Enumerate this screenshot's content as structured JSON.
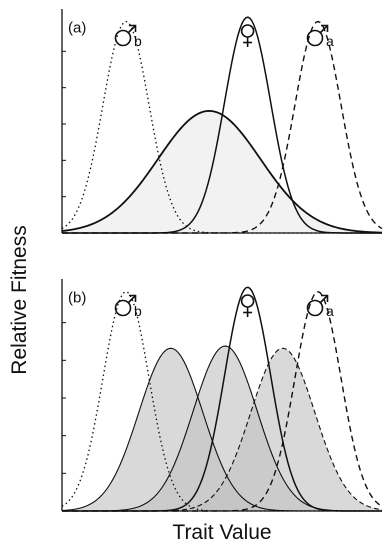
{
  "chart_data": {
    "ylabel": "Relative Fitness",
    "xlabel": "Trait Value",
    "xlim": [
      0,
      10
    ],
    "ylim": [
      0,
      1
    ],
    "panels": [
      {
        "label": "(a)",
        "type": "line",
        "curve_labels": [
          {
            "symbol": "male",
            "subscript": "b",
            "x": 2.0
          },
          {
            "symbol": "female",
            "subscript": "",
            "x": 5.8
          },
          {
            "symbol": "male",
            "subscript": "a",
            "x": 8.0
          }
        ],
        "series": [
          {
            "style": "dotted",
            "mean": 2.0,
            "sd": 0.72,
            "peak": 0.97,
            "fill": "none"
          },
          {
            "style": "solid",
            "mean": 5.8,
            "sd": 0.72,
            "peak": 0.99,
            "fill": "none"
          },
          {
            "style": "dashed",
            "mean": 8.0,
            "sd": 0.72,
            "peak": 0.97,
            "fill": "none"
          },
          {
            "style": "solid-thick",
            "mean": 4.6,
            "sd": 1.6,
            "peak": 0.56,
            "fill": "#f2f2f2"
          }
        ]
      },
      {
        "label": "(b)",
        "type": "line",
        "curve_labels": [
          {
            "symbol": "male",
            "subscript": "b",
            "x": 2.0
          },
          {
            "symbol": "female",
            "subscript": "",
            "x": 5.8
          },
          {
            "symbol": "male",
            "subscript": "a",
            "x": 8.0
          }
        ],
        "series": [
          {
            "style": "dotted",
            "mean": 2.0,
            "sd": 0.72,
            "peak": 0.97,
            "fill": "none"
          },
          {
            "style": "solid",
            "mean": 5.8,
            "sd": 0.72,
            "peak": 0.99,
            "fill": "none"
          },
          {
            "style": "dashed",
            "mean": 8.0,
            "sd": 0.72,
            "peak": 0.97,
            "fill": "none"
          },
          {
            "style": "solid-thin",
            "mean": 3.4,
            "sd": 1.0,
            "peak": 0.72,
            "fill": "#c2c2c2"
          },
          {
            "style": "solid-thin",
            "mean": 5.1,
            "sd": 1.0,
            "peak": 0.73,
            "fill": "#c2c2c2"
          },
          {
            "style": "dashed-thin",
            "mean": 6.9,
            "sd": 1.0,
            "peak": 0.72,
            "fill": "#c2c2c2"
          }
        ]
      }
    ]
  }
}
